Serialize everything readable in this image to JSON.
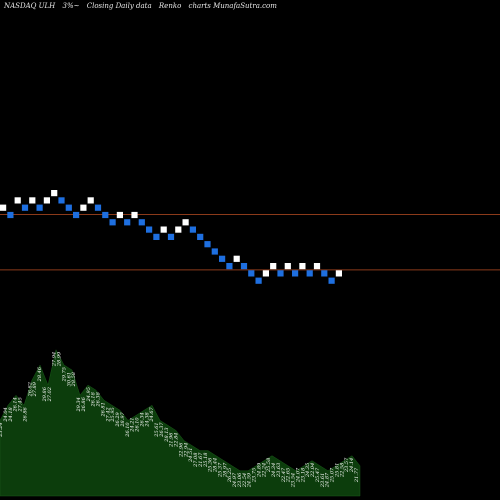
{
  "header": {
    "ticker": "NASDAQ ULH",
    "change": "3%~",
    "caption": "Closing Daily data",
    "chart_kind": "Renko",
    "source": "charts MunafaSutra.com"
  },
  "colors": {
    "background": "#000000",
    "up_brick": "#ffffff",
    "down_brick": "#1e6fe0",
    "reference_line": "#8b3a1a",
    "volume_fill": "#0c3d0c",
    "volume_label": "#ffffff"
  },
  "chart_data": {
    "type": "renko",
    "reference_lines": [
      33.6,
      29.8
    ],
    "bricks": [
      {
        "dir": "up",
        "price": 34.0
      },
      {
        "dir": "down",
        "price": 33.5
      },
      {
        "dir": "up",
        "price": 34.5
      },
      {
        "dir": "down",
        "price": 34.0
      },
      {
        "dir": "up",
        "price": 34.5
      },
      {
        "dir": "down",
        "price": 34.0
      },
      {
        "dir": "up",
        "price": 34.5
      },
      {
        "dir": "up",
        "price": 35.0
      },
      {
        "dir": "down",
        "price": 34.5
      },
      {
        "dir": "down",
        "price": 34.0
      },
      {
        "dir": "down",
        "price": 33.5
      },
      {
        "dir": "up",
        "price": 34.0
      },
      {
        "dir": "up",
        "price": 34.5
      },
      {
        "dir": "down",
        "price": 34.0
      },
      {
        "dir": "down",
        "price": 33.5
      },
      {
        "dir": "down",
        "price": 33.0
      },
      {
        "dir": "up",
        "price": 33.5
      },
      {
        "dir": "down",
        "price": 33.0
      },
      {
        "dir": "up",
        "price": 33.5
      },
      {
        "dir": "down",
        "price": 33.0
      },
      {
        "dir": "down",
        "price": 32.5
      },
      {
        "dir": "down",
        "price": 32.0
      },
      {
        "dir": "up",
        "price": 32.5
      },
      {
        "dir": "down",
        "price": 32.0
      },
      {
        "dir": "up",
        "price": 32.5
      },
      {
        "dir": "up",
        "price": 33.0
      },
      {
        "dir": "down",
        "price": 32.5
      },
      {
        "dir": "down",
        "price": 32.0
      },
      {
        "dir": "down",
        "price": 31.5
      },
      {
        "dir": "down",
        "price": 31.0
      },
      {
        "dir": "down",
        "price": 30.5
      },
      {
        "dir": "down",
        "price": 30.0
      },
      {
        "dir": "up",
        "price": 30.5
      },
      {
        "dir": "down",
        "price": 30.0
      },
      {
        "dir": "down",
        "price": 29.5
      },
      {
        "dir": "down",
        "price": 29.0
      },
      {
        "dir": "up",
        "price": 29.5
      },
      {
        "dir": "up",
        "price": 30.0
      },
      {
        "dir": "down",
        "price": 29.5
      },
      {
        "dir": "up",
        "price": 30.0
      },
      {
        "dir": "down",
        "price": 29.5
      },
      {
        "dir": "up",
        "price": 30.0
      },
      {
        "dir": "down",
        "price": 29.5
      },
      {
        "dir": "up",
        "price": 30.0
      },
      {
        "dir": "down",
        "price": 29.5
      },
      {
        "dir": "down",
        "price": 29.0
      },
      {
        "dir": "up",
        "price": 29.5
      }
    ],
    "volume_profile": [
      0.3,
      0.36,
      0.4,
      0.36,
      0.46,
      0.52,
      0.44,
      0.58,
      0.52,
      0.5,
      0.4,
      0.44,
      0.42,
      0.38,
      0.36,
      0.34,
      0.3,
      0.32,
      0.34,
      0.36,
      0.3,
      0.28,
      0.26,
      0.22,
      0.2,
      0.18,
      0.18,
      0.16,
      0.14,
      0.12,
      0.1,
      0.1,
      0.12,
      0.14,
      0.16,
      0.14,
      0.12,
      0.1,
      0.12,
      0.14,
      0.12,
      0.1,
      0.12,
      0.14,
      0.16,
      0.12
    ],
    "volume_labels": [
      "23.24",
      "24.04",
      "24.18",
      "26.14",
      "27.45",
      "26.86",
      "26.82",
      "27.89",
      "28.46",
      "29.86",
      "27.02",
      "27.94",
      "28.99",
      "29.75",
      "30.61",
      "28.58",
      "29.34",
      "26.86",
      "24.95",
      "26.18",
      "26.38",
      "26.81",
      "27.42",
      "25.95",
      "26.29",
      "28.97",
      "26.10",
      "24.21",
      "26.10",
      "26.34",
      "24.38",
      "24.67",
      "25.61",
      "26.37",
      "28.13",
      "21.96",
      "22.84",
      "22.96",
      "22.94",
      "24.51",
      "27.08",
      "21.67",
      "25.18",
      "25.36",
      "28.44",
      "25.37",
      "28.97",
      "26.25",
      "24.97",
      "23.06",
      "22.54",
      "24.59",
      "23.75",
      "24.89",
      "22.24",
      "25.58",
      "24.34",
      "23.63",
      "22.47",
      "22.65",
      "23.54",
      "24.07",
      "23.18",
      "24.35",
      "22.04",
      "25.47",
      "23.61",
      "24.87",
      "25.07",
      "25.81",
      "22.58",
      "23.57",
      "24.14",
      "21.77"
    ]
  }
}
